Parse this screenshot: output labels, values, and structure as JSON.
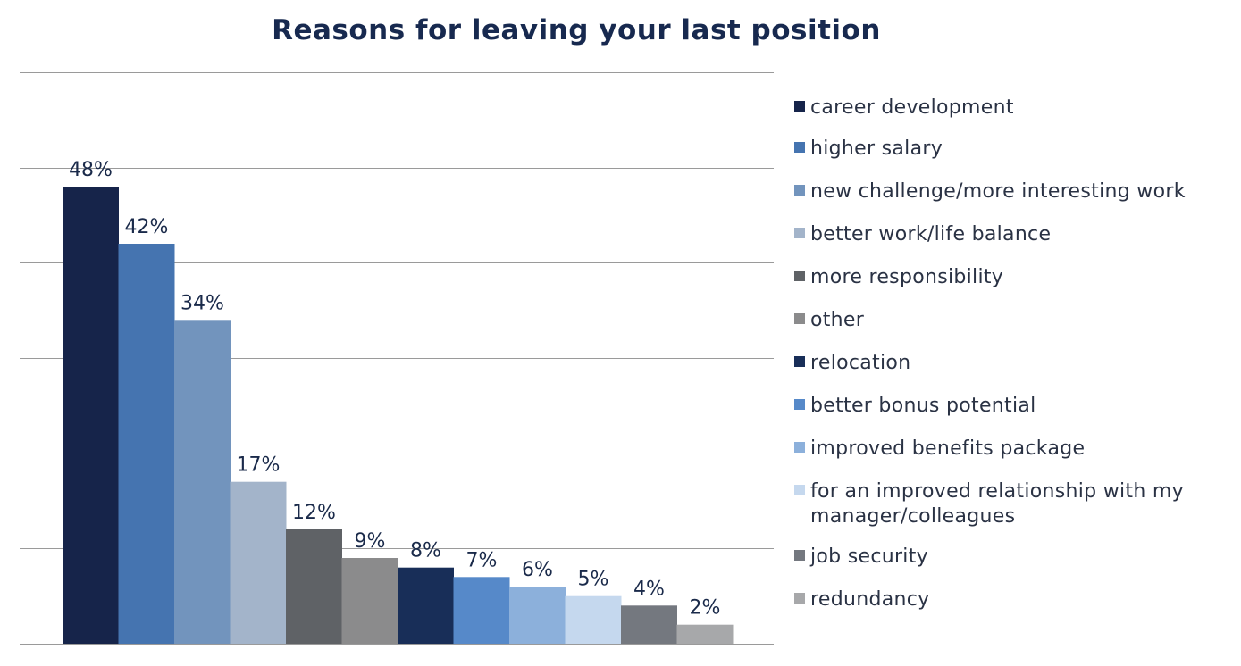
{
  "chart_data": {
    "type": "bar",
    "title": "Reasons for leaving your last position",
    "categories": [
      "career development",
      "higher salary",
      "new challenge/more interesting work",
      "better work/life balance",
      "more responsibility",
      "other",
      "relocation",
      "better bonus potential",
      "improved benefits package",
      "for an improved relationship with my manager/colleagues",
      "job security",
      "redundancy"
    ],
    "values": [
      48,
      42,
      34,
      17,
      12,
      9,
      8,
      7,
      6,
      5,
      4,
      2
    ],
    "data_labels": [
      "48%",
      "42%",
      "34%",
      "17%",
      "12%",
      "9%",
      "8%",
      "7%",
      "6%",
      "5%",
      "4%",
      "2%"
    ],
    "colors": [
      "#16244a",
      "#4574b0",
      "#7294bd",
      "#a3b4ca",
      "#5f6266",
      "#8b8b8c",
      "#182e58",
      "#5689c9",
      "#8cb0db",
      "#c5d8ee",
      "#74787f",
      "#a7a8aa"
    ],
    "ylim": [
      0,
      60
    ],
    "grid": true,
    "legend_position": "right"
  }
}
